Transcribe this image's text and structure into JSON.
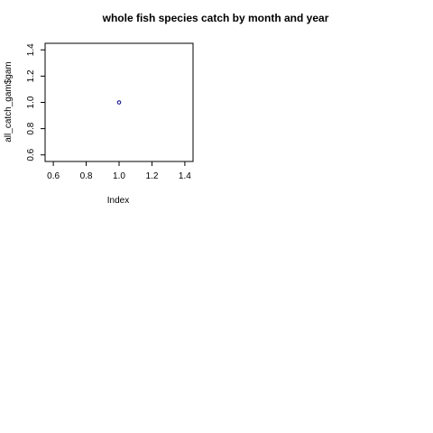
{
  "chart_data": {
    "type": "scatter",
    "title": "whole fish species catch by month and year",
    "xlabel": "Index",
    "ylabel": "all_catch_gam$gam",
    "xlim": [
      0.55,
      1.45
    ],
    "ylim": [
      0.55,
      1.45
    ],
    "x_ticks": [
      0.6,
      0.8,
      1.0,
      1.2,
      1.4
    ],
    "x_tick_labels": [
      "0.6",
      "0.8",
      "1.0",
      "1.2",
      "1.4"
    ],
    "y_ticks": [
      0.6,
      0.8,
      1.0,
      1.2,
      1.4
    ],
    "y_tick_labels": [
      "0.6",
      "0.8",
      "1.0",
      "1.2",
      "1.4"
    ],
    "points": [
      {
        "x": 1.0,
        "y": 1.0
      }
    ],
    "grid": false,
    "marker_color": "#000080"
  }
}
